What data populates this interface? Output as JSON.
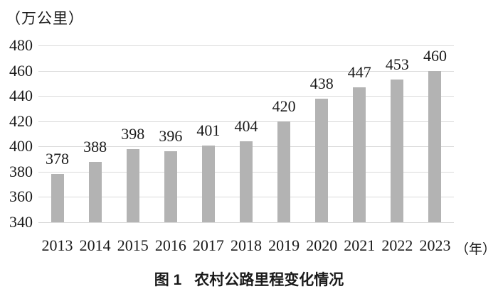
{
  "chart_data": {
    "type": "bar",
    "title": "图 1 农村公路里程变化情况",
    "y_unit_label": "（万公里）",
    "x_unit_label": "（年）",
    "categories": [
      "2013",
      "2014",
      "2015",
      "2016",
      "2017",
      "2018",
      "2019",
      "2020",
      "2021",
      "2022",
      "2023"
    ],
    "values": [
      378,
      388,
      398,
      396,
      401,
      404,
      420,
      438,
      447,
      453,
      460
    ],
    "ylim": [
      340,
      480
    ],
    "yticks": [
      340,
      360,
      380,
      400,
      420,
      440,
      460,
      480
    ],
    "grid": true,
    "legend": "none",
    "bar_color": "#b3b3b3",
    "gridline_color": "#d9d9d9",
    "text_color": "#1a1a1a",
    "background_color": "#ffffff"
  },
  "caption": {
    "figure_label": "图 1",
    "title": "农村公路里程变化情况"
  }
}
